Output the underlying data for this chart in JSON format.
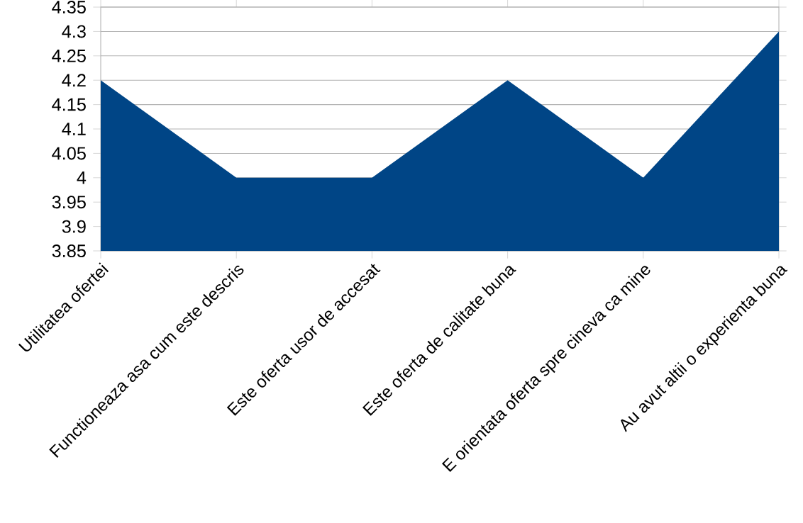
{
  "chart_data": {
    "type": "area",
    "categories": [
      "Utilitatea ofertei",
      "Functioneaza asa cum este descris",
      "Este oferta usor de accesat",
      "Este oferta de calitate buna",
      "E orientata oferta spre cineva ca mine",
      "Au avut altii o experienta buna"
    ],
    "values": [
      4.2,
      4.0,
      4.0,
      4.2,
      4.0,
      4.3
    ],
    "color": "#004586",
    "ylim": [
      3.85,
      4.35
    ],
    "yticks": [
      3.85,
      3.9,
      3.95,
      4,
      4.05,
      4.1,
      4.15,
      4.2,
      4.25,
      4.3,
      4.35
    ],
    "grid": "y"
  }
}
